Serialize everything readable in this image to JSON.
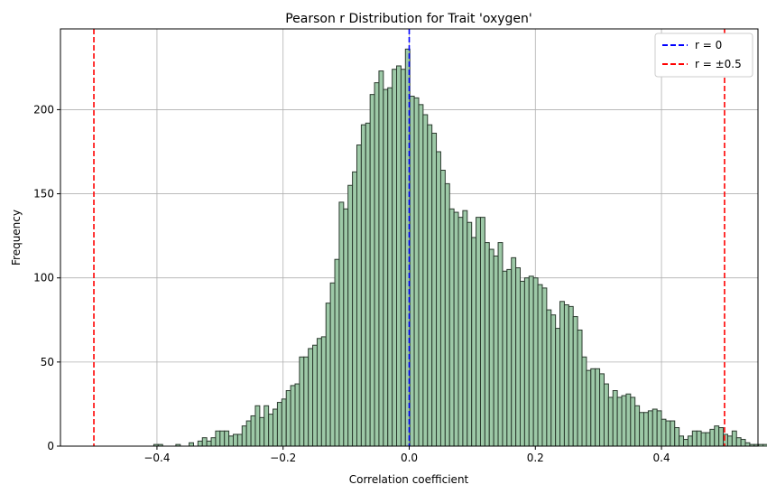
{
  "chart_data": {
    "type": "bar",
    "title": "Pearson r Distribution for Trait 'oxygen'",
    "xlabel": "Correlation coefficient",
    "ylabel": "Frequency",
    "xlim": [
      -0.553,
      0.553
    ],
    "ylim": [
      0,
      248
    ],
    "xticks": [
      -0.4,
      -0.2,
      0.0,
      0.2,
      0.4
    ],
    "xtick_labels": [
      "−0.4",
      "−0.2",
      "0.0",
      "0.2",
      "0.4"
    ],
    "yticks": [
      0,
      50,
      100,
      150,
      200
    ],
    "ytick_labels": [
      "0",
      "50",
      "100",
      "150",
      "200"
    ],
    "grid": true,
    "bin_start": -0.405,
    "bin_width": 0.007,
    "counts": [
      1,
      1,
      0,
      0,
      0,
      1,
      0,
      0,
      2,
      0,
      3,
      5,
      3,
      5,
      9,
      9,
      9,
      6,
      7,
      7,
      12,
      15,
      18,
      24,
      17,
      24,
      19,
      22,
      26,
      28,
      33,
      36,
      37,
      53,
      53,
      58,
      60,
      64,
      65,
      85,
      97,
      111,
      145,
      141,
      155,
      163,
      179,
      191,
      192,
      209,
      216,
      223,
      212,
      213,
      224,
      226,
      224,
      236,
      208,
      207,
      203,
      197,
      191,
      186,
      175,
      164,
      156,
      141,
      139,
      136,
      140,
      133,
      124,
      136,
      136,
      121,
      117,
      113,
      121,
      104,
      105,
      112,
      106,
      98,
      100,
      101,
      100,
      96,
      94,
      81,
      78,
      70,
      86,
      84,
      83,
      77,
      69,
      53,
      45,
      46,
      46,
      43,
      37,
      29,
      33,
      29,
      30,
      31,
      29,
      24,
      20,
      20,
      21,
      22,
      21,
      16,
      15,
      15,
      11,
      6,
      4,
      6,
      9,
      9,
      8,
      8,
      10,
      12,
      11,
      7,
      6,
      9,
      5,
      4,
      2,
      1,
      1,
      1,
      1
    ],
    "bar_color": "#9dc9a7",
    "bar_edge_color": "#2b3a2e",
    "lines": [
      {
        "x": 0,
        "label": "r = 0",
        "color": "#0000ff",
        "style": "dashed"
      },
      {
        "x": -0.5,
        "label": "r = ±0.5",
        "color": "#ff0000",
        "style": "dashed"
      },
      {
        "x": 0.5,
        "label": "",
        "color": "#ff0000",
        "style": "dashed"
      }
    ],
    "legend": {
      "placement": "top-right",
      "entries": [
        {
          "label": "r = 0",
          "color": "#0000ff"
        },
        {
          "label": "r = ±0.5",
          "color": "#ff0000"
        }
      ]
    }
  }
}
